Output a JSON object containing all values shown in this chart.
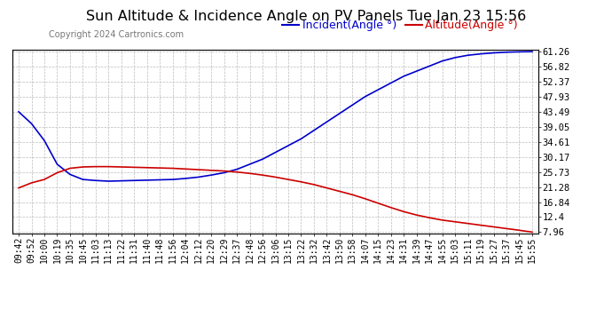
{
  "title": "Sun Altitude & Incidence Angle on PV Panels Tue Jan 23 15:56",
  "copyright": "Copyright 2024 Cartronics.com",
  "legend_incident": "Incident(Angle °)",
  "legend_altitude": "Altitude(Angle °)",
  "incident_color": "#0000cc",
  "altitude_color": "#cc0000",
  "background_color": "#ffffff",
  "grid_color": "#bbbbbb",
  "ytick_values": [
    7.96,
    12.4,
    16.84,
    21.28,
    25.73,
    30.17,
    34.61,
    39.05,
    43.49,
    47.93,
    52.37,
    56.82,
    61.26
  ],
  "xtick_labels": [
    "09:42",
    "09:52",
    "10:00",
    "10:19",
    "10:35",
    "10:45",
    "11:03",
    "11:13",
    "11:22",
    "11:31",
    "11:40",
    "11:48",
    "11:56",
    "12:04",
    "12:12",
    "12:20",
    "12:29",
    "12:37",
    "12:48",
    "12:56",
    "13:06",
    "13:15",
    "13:22",
    "13:32",
    "13:42",
    "13:50",
    "13:58",
    "14:07",
    "14:15",
    "14:23",
    "14:31",
    "14:39",
    "14:47",
    "14:55",
    "15:03",
    "15:11",
    "15:19",
    "15:27",
    "15:37",
    "15:45",
    "15:55"
  ],
  "ymin": 7.96,
  "ymax": 61.26,
  "title_fontsize": 11.5,
  "copyright_fontsize": 7,
  "legend_fontsize": 9,
  "tick_fontsize": 7.5,
  "incident_y": [
    43.5,
    40.0,
    35.0,
    28.0,
    25.0,
    23.5,
    23.2,
    23.0,
    23.1,
    23.2,
    23.3,
    23.4,
    23.5,
    23.8,
    24.2,
    24.8,
    25.5,
    26.5,
    28.0,
    29.5,
    31.5,
    33.5,
    35.5,
    38.0,
    40.5,
    43.0,
    45.5,
    48.0,
    50.0,
    52.0,
    54.0,
    55.5,
    57.0,
    58.5,
    59.5,
    60.2,
    60.6,
    60.9,
    61.1,
    61.2,
    61.26
  ],
  "altitude_y": [
    21.0,
    22.5,
    23.5,
    25.5,
    26.8,
    27.2,
    27.3,
    27.3,
    27.2,
    27.1,
    27.0,
    26.9,
    26.8,
    26.6,
    26.4,
    26.2,
    26.0,
    25.7,
    25.3,
    24.8,
    24.2,
    23.5,
    22.8,
    22.0,
    21.0,
    20.0,
    19.0,
    17.8,
    16.5,
    15.2,
    14.0,
    13.0,
    12.2,
    11.5,
    11.0,
    10.5,
    10.0,
    9.5,
    9.0,
    8.5,
    7.96
  ]
}
